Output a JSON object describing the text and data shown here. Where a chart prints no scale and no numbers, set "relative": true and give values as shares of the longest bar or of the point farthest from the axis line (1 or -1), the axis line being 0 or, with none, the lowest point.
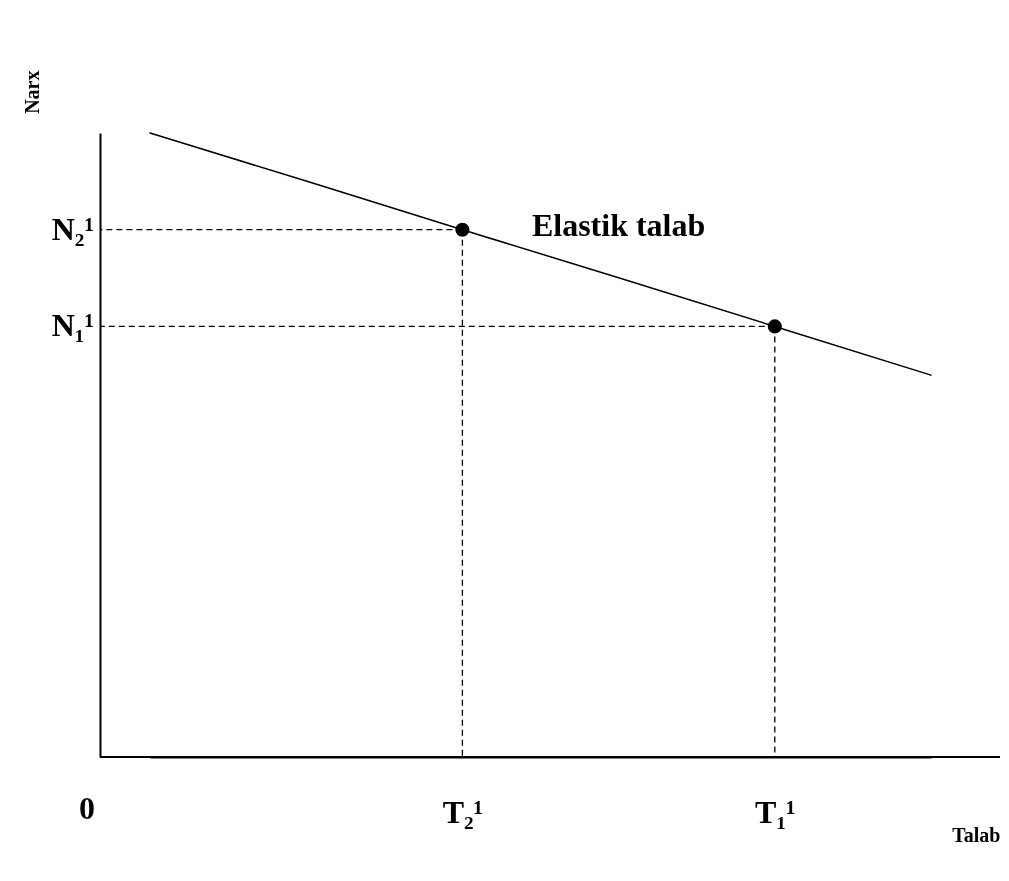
{
  "chart_data": {
    "type": "line",
    "xlabel": "Talab",
    "ylabel": "Narx",
    "relative": true,
    "categories": [
      null,
      null,
      "T₂¹",
      null,
      "T₁¹",
      null
    ],
    "series": [
      {
        "name": "Elastik talab",
        "color": "#000000",
        "values": [
          1,
          0.923,
          0.845,
          0.768,
          0.69,
          0.612
        ]
      },
      {
        "type": "scatter",
        "color": "#000000",
        "marker": "circle",
        "x": [
          "T₂¹",
          "T₁¹"
        ],
        "values": [
          0.845,
          0.69
        ]
      }
    ],
    "annotations": [
      {
        "text": "N₂¹",
        "x": "T₂¹",
        "y": 0.845
      },
      {
        "text": "N₁¹",
        "x": "T₁¹",
        "y": 0.69
      },
      "0"
    ]
  }
}
